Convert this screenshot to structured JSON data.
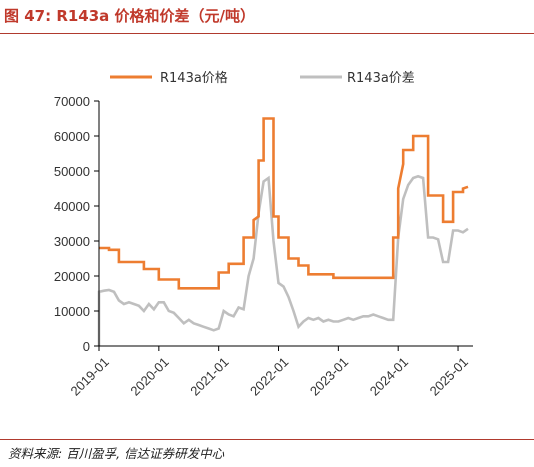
{
  "title": "图 47:  R143a 价格和价差（元/吨）",
  "source": "资料来源:  百川盈孚,  信达证券研发中心",
  "colors": {
    "price": "#ED7D31",
    "spread": "#BFBFBF",
    "accent": "#C0392B"
  },
  "chart_data": {
    "type": "line",
    "ylim": [
      0,
      70000
    ],
    "yticks": [
      "0",
      "10000",
      "20000",
      "30000",
      "40000",
      "50000",
      "60000",
      "70000"
    ],
    "xlim": [
      "2019-01",
      "2025-04"
    ],
    "xticks": [
      "2019-01",
      "2020-01",
      "2021-01",
      "2022-01",
      "2023-01",
      "2024-01",
      "2025-01"
    ],
    "legend_placement": "top",
    "grid": false,
    "series": [
      {
        "name": "R143a价格",
        "color": "#ED7D31",
        "points": [
          [
            "2019-01",
            28000
          ],
          [
            "2019-03",
            28000
          ],
          [
            "2019-03",
            27500
          ],
          [
            "2019-05",
            27500
          ],
          [
            "2019-05",
            24000
          ],
          [
            "2019-10",
            24000
          ],
          [
            "2019-10",
            22000
          ],
          [
            "2020-01",
            22000
          ],
          [
            "2020-01",
            19000
          ],
          [
            "2020-05",
            19000
          ],
          [
            "2020-05",
            16500
          ],
          [
            "2021-01",
            16500
          ],
          [
            "2021-01",
            21000
          ],
          [
            "2021-03",
            21000
          ],
          [
            "2021-03",
            23500
          ],
          [
            "2021-06",
            23500
          ],
          [
            "2021-06",
            31000
          ],
          [
            "2021-08",
            31000
          ],
          [
            "2021-08",
            36000
          ],
          [
            "2021-09",
            37000
          ],
          [
            "2021-09",
            53000
          ],
          [
            "2021-10",
            53000
          ],
          [
            "2021-10",
            65000
          ],
          [
            "2021-12",
            65000
          ],
          [
            "2021-12",
            37000
          ],
          [
            "2022-01",
            37000
          ],
          [
            "2022-01",
            31000
          ],
          [
            "2022-03",
            31000
          ],
          [
            "2022-03",
            25000
          ],
          [
            "2022-05",
            25000
          ],
          [
            "2022-05",
            23000
          ],
          [
            "2022-07",
            23000
          ],
          [
            "2022-07",
            20500
          ],
          [
            "2022-12",
            20500
          ],
          [
            "2022-12",
            19500
          ],
          [
            "2023-12",
            19500
          ],
          [
            "2023-12",
            31000
          ],
          [
            "2024-01",
            31000
          ],
          [
            "2024-01",
            45000
          ],
          [
            "2024-02",
            52000
          ],
          [
            "2024-02",
            56000
          ],
          [
            "2024-04",
            56000
          ],
          [
            "2024-04",
            60000
          ],
          [
            "2024-07",
            60000
          ],
          [
            "2024-07",
            43000
          ],
          [
            "2024-10",
            43000
          ],
          [
            "2024-10",
            35500
          ],
          [
            "2024-12",
            35500
          ],
          [
            "2024-12",
            44000
          ],
          [
            "2025-02",
            44000
          ],
          [
            "2025-02",
            45000
          ],
          [
            "2025-03",
            45500
          ]
        ]
      },
      {
        "name": "R143a价差",
        "color": "#BFBFBF",
        "points": [
          [
            "2019-01",
            0
          ],
          [
            "2019-01",
            15500
          ],
          [
            "2019-02",
            15800
          ],
          [
            "2019-03",
            16000
          ],
          [
            "2019-04",
            15500
          ],
          [
            "2019-05",
            13000
          ],
          [
            "2019-06",
            12000
          ],
          [
            "2019-07",
            12500
          ],
          [
            "2019-08",
            12000
          ],
          [
            "2019-09",
            11500
          ],
          [
            "2019-10",
            10000
          ],
          [
            "2019-11",
            12000
          ],
          [
            "2019-12",
            10500
          ],
          [
            "2020-01",
            12500
          ],
          [
            "2020-02",
            12500
          ],
          [
            "2020-03",
            10000
          ],
          [
            "2020-04",
            9500
          ],
          [
            "2020-05",
            8000
          ],
          [
            "2020-06",
            6500
          ],
          [
            "2020-07",
            7500
          ],
          [
            "2020-08",
            6500
          ],
          [
            "2020-09",
            6000
          ],
          [
            "2020-10",
            5500
          ],
          [
            "2020-11",
            5000
          ],
          [
            "2020-12",
            4500
          ],
          [
            "2021-01",
            5000
          ],
          [
            "2021-02",
            10000
          ],
          [
            "2021-03",
            9000
          ],
          [
            "2021-04",
            8500
          ],
          [
            "2021-05",
            11000
          ],
          [
            "2021-06",
            10500
          ],
          [
            "2021-07",
            20000
          ],
          [
            "2021-08",
            25000
          ],
          [
            "2021-09",
            38000
          ],
          [
            "2021-10",
            47000
          ],
          [
            "2021-11",
            48000
          ],
          [
            "2021-12",
            30000
          ],
          [
            "2022-01",
            18000
          ],
          [
            "2022-02",
            17000
          ],
          [
            "2022-03",
            14000
          ],
          [
            "2022-04",
            10000
          ],
          [
            "2022-05",
            5500
          ],
          [
            "2022-06",
            7000
          ],
          [
            "2022-07",
            8000
          ],
          [
            "2022-08",
            7500
          ],
          [
            "2022-09",
            8000
          ],
          [
            "2022-10",
            7000
          ],
          [
            "2022-11",
            7500
          ],
          [
            "2022-12",
            7000
          ],
          [
            "2023-01",
            7000
          ],
          [
            "2023-02",
            7500
          ],
          [
            "2023-03",
            8000
          ],
          [
            "2023-04",
            7500
          ],
          [
            "2023-05",
            8000
          ],
          [
            "2023-06",
            8500
          ],
          [
            "2023-07",
            8500
          ],
          [
            "2023-08",
            9000
          ],
          [
            "2023-09",
            8500
          ],
          [
            "2023-10",
            8000
          ],
          [
            "2023-11",
            7500
          ],
          [
            "2023-12",
            7500
          ],
          [
            "2024-01",
            31000
          ],
          [
            "2024-02",
            42000
          ],
          [
            "2024-03",
            46000
          ],
          [
            "2024-04",
            48000
          ],
          [
            "2024-05",
            48500
          ],
          [
            "2024-06",
            48000
          ],
          [
            "2024-07",
            31000
          ],
          [
            "2024-08",
            31000
          ],
          [
            "2024-09",
            30500
          ],
          [
            "2024-10",
            24000
          ],
          [
            "2024-11",
            24000
          ],
          [
            "2024-12",
            33000
          ],
          [
            "2025-01",
            33000
          ],
          [
            "2025-02",
            32500
          ],
          [
            "2025-03",
            33500
          ]
        ]
      }
    ]
  }
}
